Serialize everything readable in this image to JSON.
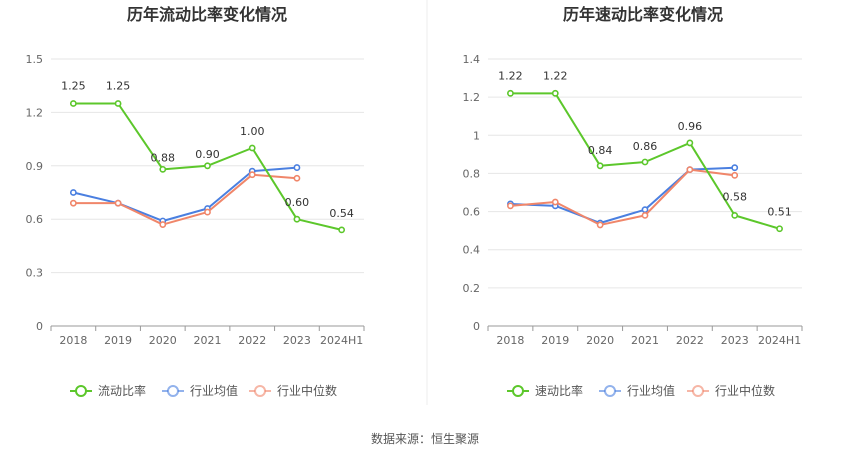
{
  "chart_data": [
    {
      "type": "line",
      "title": "历年流动比率变化情况",
      "categories": [
        "2018",
        "2019",
        "2020",
        "2021",
        "2022",
        "2023",
        "2024H1"
      ],
      "yticks": [
        "0",
        "0.3",
        "0.6",
        "0.9",
        "1.2",
        "1.5"
      ],
      "ylim": [
        0,
        1.5
      ],
      "grid": true,
      "legend_position": "bottom",
      "series": [
        {
          "name": "流动比率",
          "color": "#5cc72b",
          "values": [
            1.25,
            1.25,
            0.88,
            0.9,
            1.0,
            0.6,
            0.54
          ],
          "labels": [
            "1.25",
            "1.25",
            "0.88",
            "0.90",
            "1.00",
            "0.60",
            "0.54"
          ]
        },
        {
          "name": "行业均值",
          "color": "#4a7fe0",
          "values": [
            0.75,
            0.69,
            0.59,
            0.66,
            0.87,
            0.89,
            null
          ]
        },
        {
          "name": "行业中位数",
          "color": "#f0866a",
          "values": [
            0.69,
            0.69,
            0.57,
            0.64,
            0.85,
            0.83,
            null
          ]
        }
      ]
    },
    {
      "type": "line",
      "title": "历年速动比率变化情况",
      "categories": [
        "2018",
        "2019",
        "2020",
        "2021",
        "2022",
        "2023",
        "2024H1"
      ],
      "yticks": [
        "0",
        "0.2",
        "0.4",
        "0.6",
        "0.8",
        "1",
        "1.2",
        "1.4"
      ],
      "ylim": [
        0,
        1.4
      ],
      "grid": true,
      "legend_position": "bottom",
      "series": [
        {
          "name": "速动比率",
          "color": "#5cc72b",
          "values": [
            1.22,
            1.22,
            0.84,
            0.86,
            0.96,
            0.58,
            0.51
          ],
          "labels": [
            "1.22",
            "1.22",
            "0.84",
            "0.86",
            "0.96",
            "0.58",
            "0.51"
          ]
        },
        {
          "name": "行业均值",
          "color": "#4a7fe0",
          "values": [
            0.64,
            0.63,
            0.54,
            0.61,
            0.82,
            0.83,
            null
          ]
        },
        {
          "name": "行业中位数",
          "color": "#f0866a",
          "values": [
            0.63,
            0.65,
            0.53,
            0.58,
            0.82,
            0.79,
            null
          ]
        }
      ]
    }
  ],
  "footer": {
    "source": "数据来源：恒生聚源"
  }
}
